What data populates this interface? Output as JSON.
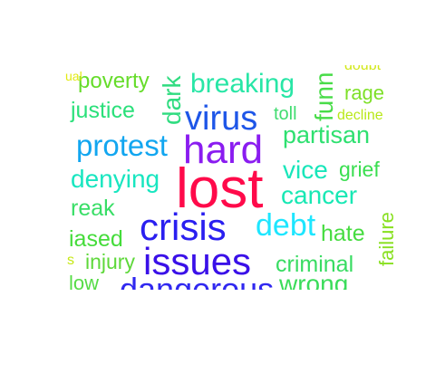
{
  "words": [
    {
      "text": "lost",
      "color": "#ff0a4a"
    },
    {
      "text": "hard",
      "color": "#8a1cf0"
    },
    {
      "text": "crisis",
      "color": "#2a1ff0"
    },
    {
      "text": "issues",
      "color": "#3a10e8"
    },
    {
      "text": "virus",
      "color": "#1e56e8"
    },
    {
      "text": "protest",
      "color": "#12a6f0"
    },
    {
      "text": "debt",
      "color": "#1ee6ff"
    },
    {
      "text": "breaking",
      "color": "#28e6a6"
    },
    {
      "text": "denying",
      "color": "#18e6c0"
    },
    {
      "text": "cancer",
      "color": "#18e8b4"
    },
    {
      "text": "vice",
      "color": "#18e6ba"
    },
    {
      "text": "partisan",
      "color": "#2ee070"
    },
    {
      "text": "justice",
      "color": "#2ae07a"
    },
    {
      "text": "criminal",
      "color": "#38dc62"
    },
    {
      "text": "hate",
      "color": "#46dc40"
    },
    {
      "text": "grief",
      "color": "#3ade50"
    },
    {
      "text": "reak",
      "color": "#38de66"
    },
    {
      "text": "iased",
      "color": "#44dc3a"
    },
    {
      "text": "injury",
      "color": "#5ed83a"
    },
    {
      "text": "poverty",
      "color": "#66dc2a"
    },
    {
      "text": "rage",
      "color": "#7ee028"
    },
    {
      "text": "toll",
      "color": "#40dc70"
    },
    {
      "text": "decline",
      "color": "#b8e818"
    },
    {
      "text": "doubt",
      "color": "#d2e818"
    },
    {
      "text": "dark",
      "color": "#30dc80"
    },
    {
      "text": "funn",
      "color": "#48dc48"
    },
    {
      "text": "failure",
      "color": "#88e020"
    },
    {
      "text": "low",
      "color": "#56dc46"
    },
    {
      "text": "dangerous",
      "color": "#3028f0"
    },
    {
      "text": "wrong",
      "color": "#3adc5a"
    },
    {
      "text": "s",
      "color": "#c6e814"
    },
    {
      "text": "ual",
      "color": "#e2ea10"
    }
  ]
}
